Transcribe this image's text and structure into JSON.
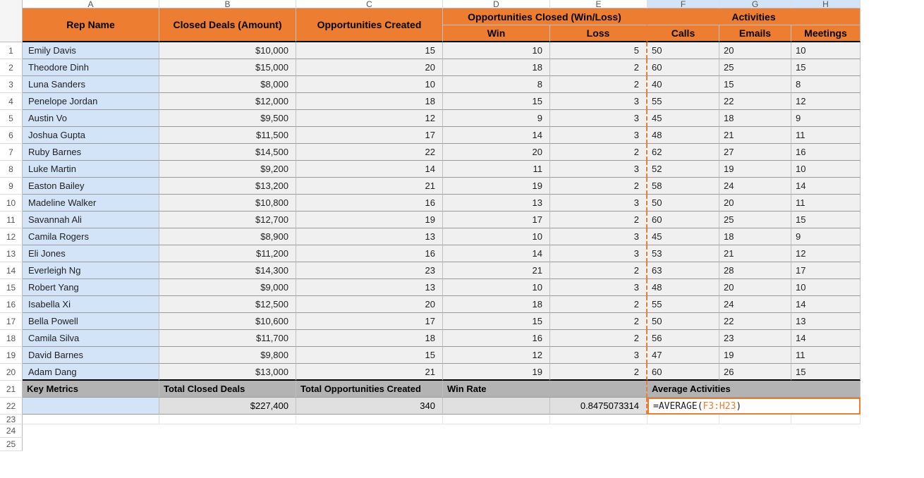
{
  "columns": [
    "A",
    "B",
    "C",
    "D",
    "E",
    "F",
    "G",
    "H"
  ],
  "rowNums": [
    "1",
    "2",
    "3",
    "4",
    "5",
    "6",
    "7",
    "8",
    "9",
    "10",
    "11",
    "12",
    "13",
    "14",
    "15",
    "16",
    "17",
    "18",
    "19",
    "20",
    "21",
    "22",
    "23",
    "24",
    "25"
  ],
  "headers": {
    "rep": "Rep Name",
    "closed": "Closed Deals (Amount)",
    "opps": "Opportunities Created",
    "oppsClosed": "Opportunities Closed (Win/Loss)",
    "win": "Win",
    "loss": "Loss",
    "activities": "Activities",
    "calls": "Calls",
    "emails": "Emails",
    "meetings": "Meetings"
  },
  "rows": [
    {
      "name": "Emily Davis",
      "closed": "$10,000",
      "opps": "15",
      "win": "10",
      "loss": "5",
      "calls": "50",
      "emails": "20",
      "meetings": "10"
    },
    {
      "name": "Theodore Dinh",
      "closed": "$15,000",
      "opps": "20",
      "win": "18",
      "loss": "2",
      "calls": "60",
      "emails": "25",
      "meetings": "15"
    },
    {
      "name": "Luna Sanders",
      "closed": "$8,000",
      "opps": "10",
      "win": "8",
      "loss": "2",
      "calls": "40",
      "emails": "15",
      "meetings": "8"
    },
    {
      "name": "Penelope Jordan",
      "closed": "$12,000",
      "opps": "18",
      "win": "15",
      "loss": "3",
      "calls": "55",
      "emails": "22",
      "meetings": "12"
    },
    {
      "name": "Austin Vo",
      "closed": "$9,500",
      "opps": "12",
      "win": "9",
      "loss": "3",
      "calls": "45",
      "emails": "18",
      "meetings": "9"
    },
    {
      "name": "Joshua Gupta",
      "closed": "$11,500",
      "opps": "17",
      "win": "14",
      "loss": "3",
      "calls": "48",
      "emails": "21",
      "meetings": "11"
    },
    {
      "name": "Ruby Barnes",
      "closed": "$14,500",
      "opps": "22",
      "win": "20",
      "loss": "2",
      "calls": "62",
      "emails": "27",
      "meetings": "16"
    },
    {
      "name": "Luke Martin",
      "closed": "$9,200",
      "opps": "14",
      "win": "11",
      "loss": "3",
      "calls": "52",
      "emails": "19",
      "meetings": "10"
    },
    {
      "name": "Easton Bailey",
      "closed": "$13,200",
      "opps": "21",
      "win": "19",
      "loss": "2",
      "calls": "58",
      "emails": "24",
      "meetings": "14"
    },
    {
      "name": "Madeline Walker",
      "closed": "$10,800",
      "opps": "16",
      "win": "13",
      "loss": "3",
      "calls": "50",
      "emails": "20",
      "meetings": "11"
    },
    {
      "name": "Savannah Ali",
      "closed": "$12,700",
      "opps": "19",
      "win": "17",
      "loss": "2",
      "calls": "60",
      "emails": "25",
      "meetings": "15"
    },
    {
      "name": "Camila Rogers",
      "closed": "$8,900",
      "opps": "13",
      "win": "10",
      "loss": "3",
      "calls": "45",
      "emails": "18",
      "meetings": "9"
    },
    {
      "name": "Eli Jones",
      "closed": "$11,200",
      "opps": "16",
      "win": "14",
      "loss": "3",
      "calls": "53",
      "emails": "21",
      "meetings": "12"
    },
    {
      "name": "Everleigh Ng",
      "closed": "$14,300",
      "opps": "23",
      "win": "21",
      "loss": "2",
      "calls": "63",
      "emails": "28",
      "meetings": "17"
    },
    {
      "name": "Robert Yang",
      "closed": "$9,000",
      "opps": "13",
      "win": "10",
      "loss": "3",
      "calls": "48",
      "emails": "20",
      "meetings": "10"
    },
    {
      "name": "Isabella Xi",
      "closed": "$12,500",
      "opps": "20",
      "win": "18",
      "loss": "2",
      "calls": "55",
      "emails": "24",
      "meetings": "14"
    },
    {
      "name": "Bella Powell",
      "closed": "$10,600",
      "opps": "17",
      "win": "15",
      "loss": "2",
      "calls": "50",
      "emails": "22",
      "meetings": "13"
    },
    {
      "name": "Camila Silva",
      "closed": "$11,700",
      "opps": "18",
      "win": "16",
      "loss": "2",
      "calls": "56",
      "emails": "23",
      "meetings": "14"
    },
    {
      "name": "David Barnes",
      "closed": "$9,800",
      "opps": "15",
      "win": "12",
      "loss": "3",
      "calls": "47",
      "emails": "19",
      "meetings": "11"
    },
    {
      "name": "Adam Dang",
      "closed": "$13,000",
      "opps": "21",
      "win": "19",
      "loss": "2",
      "calls": "60",
      "emails": "26",
      "meetings": "15"
    }
  ],
  "metrics": {
    "key": "Key Metrics",
    "totalClosedLbl": "Total Closed Deals",
    "totalOppsLbl": "Total Opportunities Created",
    "winRateLbl": "Win Rate",
    "avgActLbl": "Average Activities",
    "totalClosed": "$227,400",
    "totalOpps": "340",
    "winRate": "0.8475073314"
  },
  "formula": {
    "prefix": "=AVERAGE(",
    "range": "F3:H23",
    "suffix": ")"
  }
}
